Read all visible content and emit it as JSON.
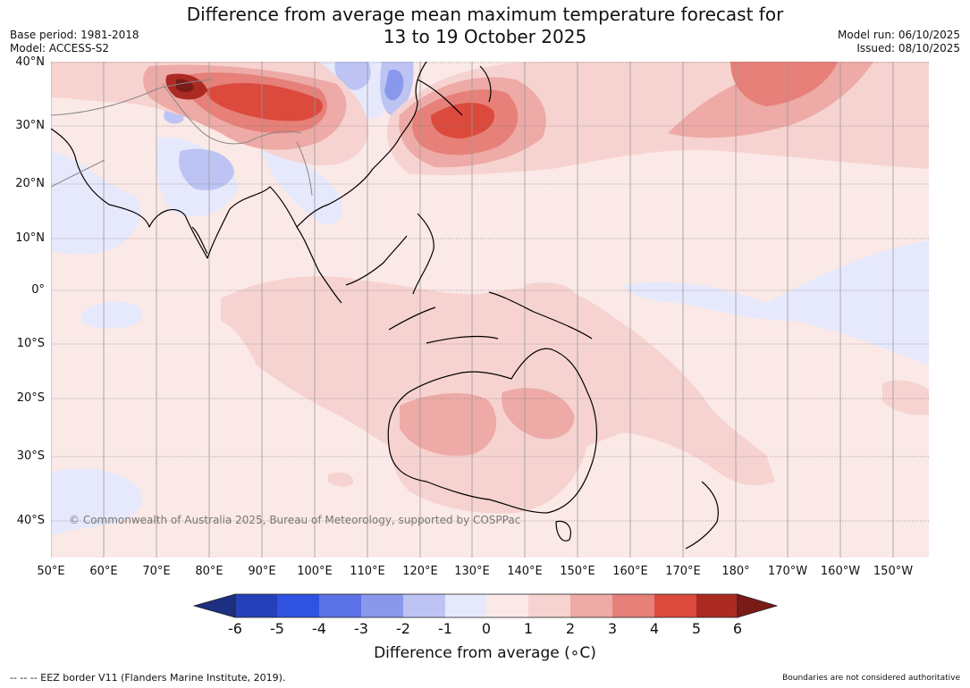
{
  "header": {
    "title_line1": "Difference from average mean maximum temperature forecast for",
    "title_line2": "13 to 19 October 2025",
    "base_period": "Base period: 1981-2018",
    "model": "Model: ACCESS-S2",
    "model_run": "Model run: 06/10/2025",
    "issued": "Issued: 08/10/2025"
  },
  "map": {
    "lat_labels": [
      "40°N",
      "30°N",
      "20°N",
      "10°N",
      "0°",
      "10°S",
      "20°S",
      "30°S",
      "40°S"
    ],
    "lon_labels": [
      "50°E",
      "60°E",
      "70°E",
      "80°E",
      "90°E",
      "100°E",
      "110°E",
      "120°E",
      "130°E",
      "140°E",
      "150°E",
      "160°E",
      "170°E",
      "180°",
      "170°W",
      "160°W",
      "150°W"
    ],
    "copyright": "© Commonwealth of Australia 2025, Bureau of Meteorology, supported by COSPPac"
  },
  "colorbar": {
    "title": "Difference from average (∘C)",
    "tick_labels": [
      "-6",
      "-5",
      "-4",
      "-3",
      "-2",
      "-1",
      "0",
      "1",
      "2",
      "3",
      "4",
      "5",
      "6"
    ],
    "colors": [
      "#1c2f80",
      "#2540b8",
      "#3052e0",
      "#5b72e6",
      "#8a98ec",
      "#bdc4f4",
      "#e6e9fb",
      "#fbe9e7",
      "#f6d3d0",
      "#eeaaa6",
      "#e68078",
      "#db4a3c",
      "#ab2a22",
      "#7a1b18"
    ]
  },
  "footer": {
    "eez": "--  --  -- EEZ border V11 (Flanders Marine Institute, 2019).",
    "disclaimer": "Boundaries are not considered authoritative"
  }
}
